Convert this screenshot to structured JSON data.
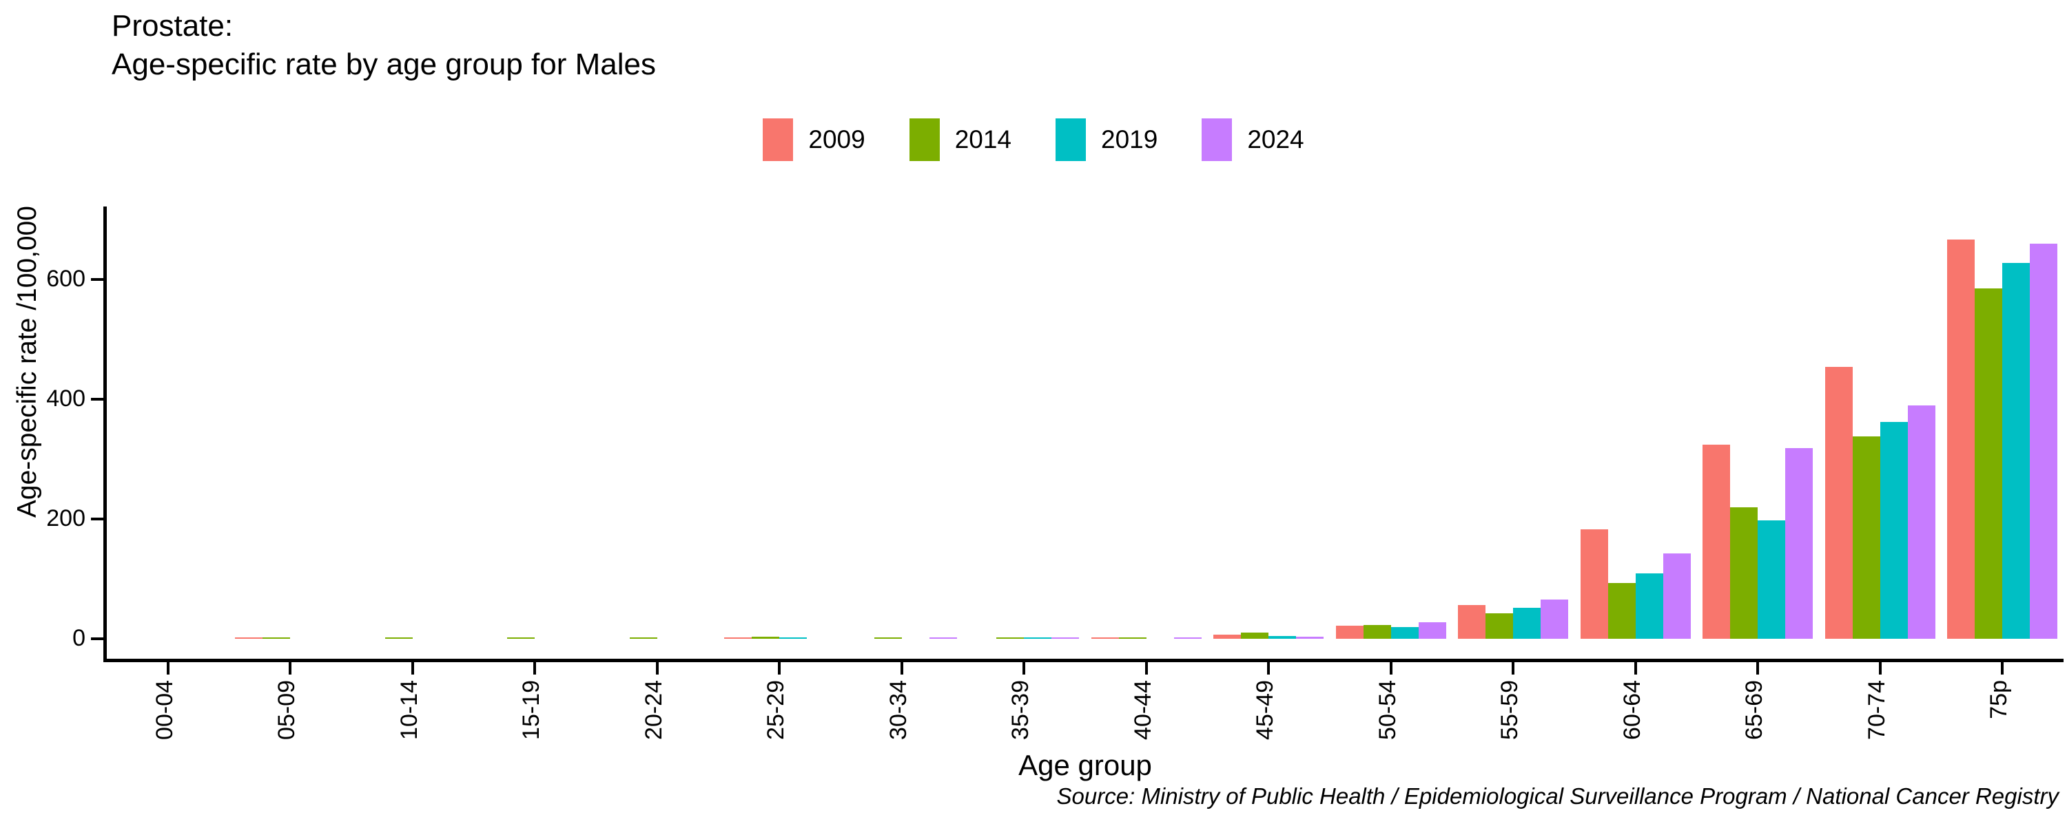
{
  "title": {
    "line1": "Prostate:",
    "line2": "Age-specific rate by age group for Males"
  },
  "footer": "Source: Ministry of Public Health / Epidemiological Surveillance Program / National Cancer Registry",
  "chart_data": {
    "type": "bar",
    "title": "Prostate: Age-specific rate by age group for Males",
    "xlabel": "Age group",
    "ylabel": "Age-specific rate /100,000",
    "categories": [
      "00-04",
      "05-09",
      "10-14",
      "15-19",
      "20-24",
      "25-29",
      "30-34",
      "35-39",
      "40-44",
      "45-49",
      "50-54",
      "55-59",
      "60-64",
      "65-69",
      "70-74",
      "75p"
    ],
    "series": [
      {
        "name": "2009",
        "color": "#F8766D",
        "values": [
          0,
          2,
          0,
          0,
          0,
          1.5,
          0,
          0,
          2.5,
          7,
          22,
          56,
          183,
          324,
          454,
          667
        ]
      },
      {
        "name": "2014",
        "color": "#7CAE00",
        "values": [
          0,
          2,
          2,
          1.5,
          2,
          4,
          2,
          1.5,
          2,
          10,
          23,
          42,
          93,
          219,
          338,
          585
        ]
      },
      {
        "name": "2019",
        "color": "#00BFC4",
        "values": [
          0,
          0,
          0,
          0,
          0,
          2,
          0,
          2,
          0,
          5,
          20,
          52,
          109,
          198,
          362,
          628
        ]
      },
      {
        "name": "2024",
        "color": "#C77CFF",
        "values": [
          0,
          0,
          0,
          0,
          0,
          0,
          1.5,
          1.5,
          1.5,
          3,
          28,
          66,
          143,
          318,
          390,
          660
        ]
      }
    ],
    "yticks": [
      0,
      200,
      400,
      600
    ],
    "ylim": [
      0,
      700
    ],
    "grid": false,
    "legend_position": "top-center",
    "axis_color": "#000000",
    "background": "#FFFFFF"
  }
}
